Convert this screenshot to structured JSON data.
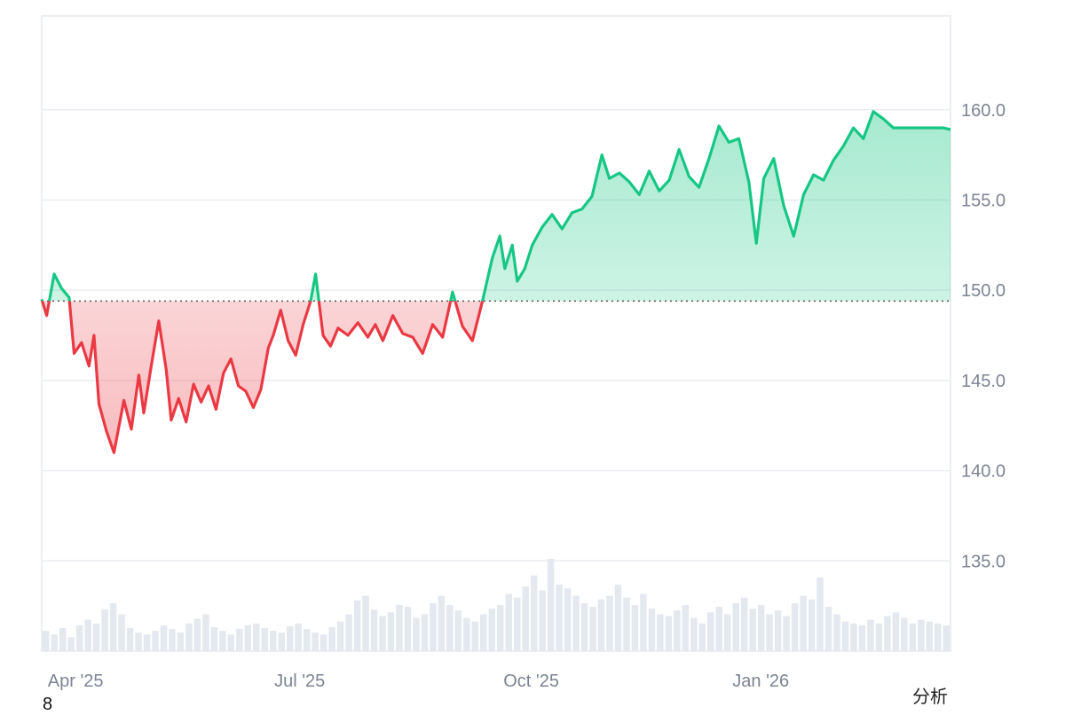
{
  "chart_data": {
    "type": "area",
    "baseline": 149.4,
    "ylim": [
      130.0,
      165.2
    ],
    "yticks": [
      "160.0",
      "155.0",
      "150.0",
      "145.0",
      "140.0",
      "135.0"
    ],
    "ytick_values": [
      160,
      155,
      150,
      145,
      140,
      135
    ],
    "xticks": [
      "Apr '25",
      "Jul '25",
      "Oct '25",
      "Jan '26"
    ],
    "xtick_dates": [
      "2025-04-01",
      "2025-07-01",
      "2025-10-01",
      "2026-01-01"
    ],
    "date_range": [
      "2025-03-31",
      "2026-03-31"
    ],
    "grid": true,
    "colors": {
      "up": "#16c784",
      "down": "#ea3943",
      "volume": "#e4e8ef",
      "grid": "#e9ecf1",
      "baseline": "#555555"
    },
    "series": [
      {
        "dates": [
          "2025-03-31",
          "2025-04-02",
          "2025-04-05",
          "2025-04-08",
          "2025-04-11",
          "2025-04-13",
          "2025-04-16",
          "2025-04-19",
          "2025-04-21",
          "2025-04-23",
          "2025-04-26",
          "2025-04-29",
          "2025-05-03",
          "2025-05-06",
          "2025-05-09",
          "2025-05-11",
          "2025-05-14",
          "2025-05-17",
          "2025-05-20",
          "2025-05-22",
          "2025-05-25",
          "2025-05-28",
          "2025-05-31",
          "2025-06-03",
          "2025-06-06",
          "2025-06-09",
          "2025-06-12",
          "2025-06-15",
          "2025-06-18",
          "2025-06-21",
          "2025-06-24",
          "2025-06-27",
          "2025-06-30",
          "2025-07-02",
          "2025-07-05",
          "2025-07-08",
          "2025-07-11",
          "2025-07-14",
          "2025-07-17",
          "2025-07-19",
          "2025-07-22",
          "2025-07-25",
          "2025-07-28",
          "2025-08-01",
          "2025-08-05",
          "2025-08-09",
          "2025-08-12",
          "2025-08-15",
          "2025-08-19",
          "2025-08-23",
          "2025-08-27",
          "2025-08-31",
          "2025-09-04",
          "2025-09-08",
          "2025-09-12",
          "2025-09-16",
          "2025-09-20",
          "2025-09-24",
          "2025-09-28",
          "2025-10-01",
          "2025-10-03",
          "2025-10-06",
          "2025-10-08",
          "2025-10-11",
          "2025-10-14",
          "2025-10-18",
          "2025-10-22",
          "2025-10-26",
          "2025-10-30",
          "2025-11-03",
          "2025-11-07",
          "2025-11-11",
          "2025-11-14",
          "2025-11-18",
          "2025-11-22",
          "2025-11-26",
          "2025-11-30",
          "2025-12-04",
          "2025-12-08",
          "2025-12-12",
          "2025-12-16",
          "2025-12-20",
          "2025-12-24",
          "2025-12-28",
          "2026-01-01",
          "2026-01-05",
          "2026-01-09",
          "2026-01-12",
          "2026-01-15",
          "2026-01-19",
          "2026-01-23",
          "2026-01-27",
          "2026-01-31",
          "2026-02-04",
          "2026-02-08",
          "2026-02-12",
          "2026-02-16",
          "2026-02-20",
          "2026-02-24",
          "2026-02-28",
          "2026-03-04",
          "2026-03-08",
          "2026-03-12",
          "2026-03-16",
          "2026-03-20",
          "2026-03-24",
          "2026-03-28",
          "2026-03-31"
        ],
        "values": [
          149.5,
          148.6,
          150.9,
          150.1,
          149.6,
          146.5,
          147.1,
          145.8,
          147.5,
          143.7,
          142.2,
          141.0,
          143.9,
          142.3,
          145.3,
          143.2,
          145.8,
          148.3,
          145.6,
          142.8,
          144.0,
          142.7,
          144.8,
          143.8,
          144.7,
          143.4,
          145.4,
          146.2,
          144.7,
          144.4,
          143.5,
          144.5,
          146.8,
          147.5,
          148.9,
          147.2,
          146.4,
          148.1,
          149.4,
          150.9,
          147.5,
          146.9,
          147.9,
          147.5,
          148.2,
          147.4,
          148.1,
          147.2,
          148.6,
          147.6,
          147.4,
          146.5,
          148.1,
          147.4,
          149.9,
          148.0,
          147.2,
          149.4,
          151.8,
          153.0,
          151.2,
          152.5,
          150.5,
          151.2,
          152.5,
          153.5,
          154.2,
          153.4,
          154.3,
          154.5,
          155.2,
          157.5,
          156.2,
          156.5,
          156.0,
          155.3,
          156.6,
          155.5,
          156.1,
          157.8,
          156.3,
          155.7,
          157.3,
          159.1,
          158.2,
          158.4,
          156.0,
          152.6,
          156.2,
          157.3,
          154.7,
          153.0,
          155.3,
          156.4,
          156.1,
          157.2,
          158.0,
          159.0,
          158.4,
          159.9,
          159.5,
          159.0,
          159.0,
          159.0,
          159.0,
          159.0,
          159.0,
          158.9
        ]
      }
    ],
    "volume_values": [
      0.22,
      0.18,
      0.25,
      0.15,
      0.28,
      0.34,
      0.3,
      0.45,
      0.52,
      0.4,
      0.25,
      0.2,
      0.18,
      0.22,
      0.28,
      0.24,
      0.2,
      0.3,
      0.35,
      0.4,
      0.26,
      0.22,
      0.18,
      0.24,
      0.28,
      0.3,
      0.25,
      0.22,
      0.2,
      0.27,
      0.3,
      0.24,
      0.2,
      0.18,
      0.26,
      0.32,
      0.4,
      0.55,
      0.6,
      0.45,
      0.38,
      0.42,
      0.5,
      0.48,
      0.36,
      0.4,
      0.52,
      0.6,
      0.5,
      0.44,
      0.36,
      0.32,
      0.4,
      0.46,
      0.5,
      0.62,
      0.58,
      0.7,
      0.82,
      0.66,
      1.0,
      0.72,
      0.68,
      0.6,
      0.52,
      0.48,
      0.56,
      0.6,
      0.72,
      0.58,
      0.5,
      0.62,
      0.46,
      0.4,
      0.38,
      0.44,
      0.5,
      0.36,
      0.3,
      0.42,
      0.48,
      0.4,
      0.52,
      0.58,
      0.46,
      0.5,
      0.4,
      0.44,
      0.38,
      0.52,
      0.6,
      0.56,
      0.8,
      0.48,
      0.4,
      0.32,
      0.3,
      0.28,
      0.34,
      0.3,
      0.38,
      0.42,
      0.36,
      0.3,
      0.34,
      0.32,
      0.3,
      0.28
    ],
    "footer_link": "分析",
    "footer_note": "8"
  }
}
